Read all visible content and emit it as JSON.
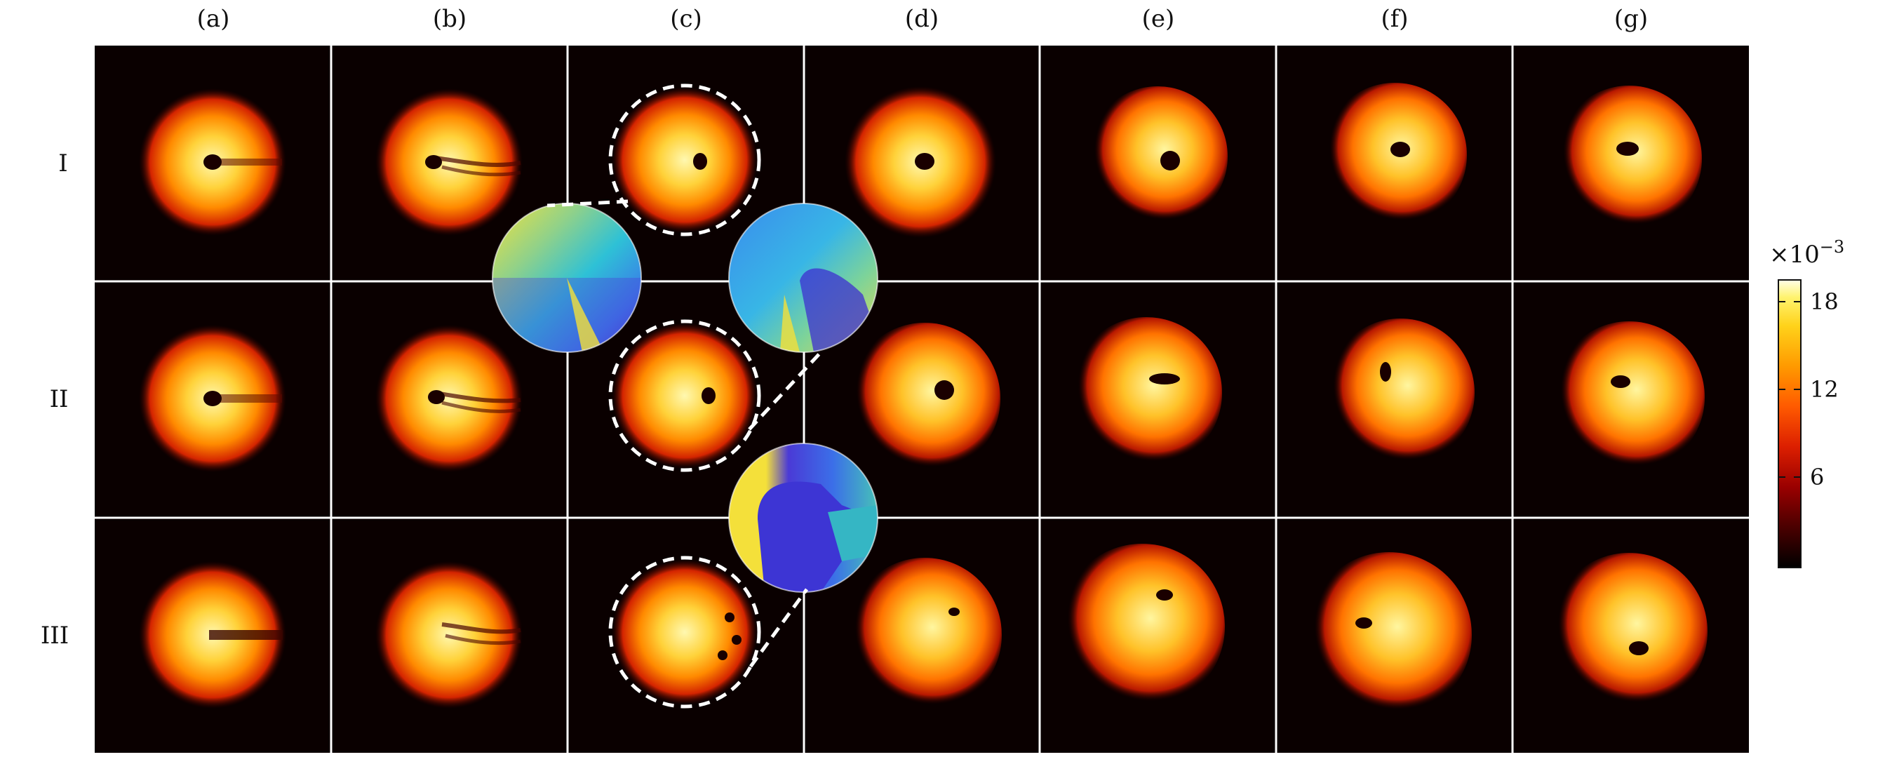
{
  "figure": {
    "column_labels": [
      "(a)",
      "(b)",
      "(c)",
      "(d)",
      "(e)",
      "(f)",
      "(g)"
    ],
    "row_labels": [
      "I",
      "II",
      "III"
    ],
    "colorbar": {
      "multiplier_label": "×10",
      "multiplier_exponent": "−3",
      "tick_labels": [
        "18",
        "12",
        "6"
      ],
      "tick_values": [
        18,
        12,
        6
      ],
      "range": [
        0,
        20
      ],
      "colormap": [
        "#000000",
        "#3a0000",
        "#8f0000",
        "#d31400",
        "#ff4d00",
        "#ff8a00",
        "#ffc400",
        "#fff06a",
        "#ffffe6"
      ]
    },
    "inset_phase_colormap": [
      "#3f2fd6",
      "#3b82ef",
      "#22bfe0",
      "#7bd39a",
      "#f0d45a",
      "#f7e53a"
    ],
    "panels": {
      "background": "#0a0000",
      "core_color": "#fff08a",
      "mid_color": "#ff8c00",
      "edge_color": "#cc1000"
    }
  }
}
